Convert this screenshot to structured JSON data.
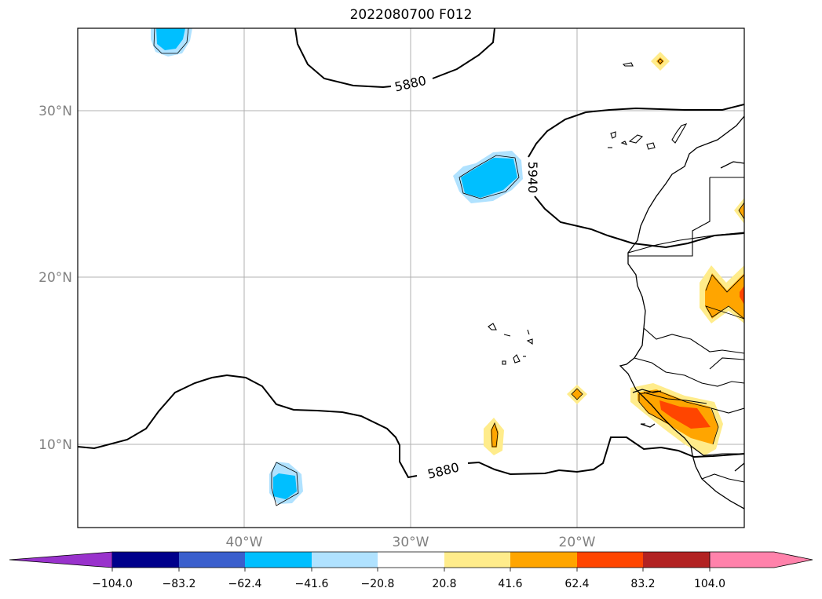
{
  "title": "2022080700 F012",
  "lat_labels": [
    "30°N",
    "20°N",
    "10°N"
  ],
  "lon_labels": [
    "40°W",
    "30°W",
    "20°W"
  ],
  "contour_labels": [
    "5880",
    "5940",
    "5880"
  ],
  "colorbar": {
    "ticks": [
      "−104.0",
      "−83.2",
      "−62.4",
      "−41.6",
      "−20.8",
      "20.8",
      "41.6",
      "62.4",
      "83.2",
      "104.0"
    ],
    "colors": [
      "#9932cc",
      "#00008b",
      "#3a5fcd",
      "#00bfff",
      "#b0e2ff",
      "#ffffff",
      "#ffec8b",
      "#ffa500",
      "#ff4500",
      "#b22222",
      "#ff82ab"
    ]
  },
  "colors": {
    "frame": "#000000",
    "grid": "#b0b0b0",
    "axis_label": "#808080"
  }
}
